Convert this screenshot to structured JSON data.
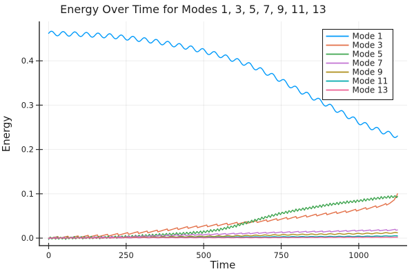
{
  "chart_data": {
    "type": "line",
    "title": "Energy Over Time for Modes 1, 3, 5, 7, 9, 11, 13",
    "xlabel": "Time",
    "ylabel": "Energy",
    "xlim": [
      -30,
      1156
    ],
    "ylim": [
      -0.017,
      0.489
    ],
    "xticks": [
      0,
      250,
      500,
      750,
      1000
    ],
    "yticks": [
      0.0,
      0.1,
      0.2,
      0.3,
      0.4
    ],
    "grid": true,
    "legend_position": "top-right",
    "background_color": "#ffffff",
    "spine_color": "#2f2f2f",
    "grid_color": "#000000",
    "series": [
      {
        "name": "Mode 1",
        "color": "#009AFA",
        "osc": {
          "amp": 0.005,
          "period": 37.5,
          "shape": "sin"
        },
        "points": [
          [
            0,
            0.462
          ],
          [
            50,
            0.461
          ],
          [
            100,
            0.46
          ],
          [
            150,
            0.458
          ],
          [
            200,
            0.456
          ],
          [
            250,
            0.452
          ],
          [
            300,
            0.448
          ],
          [
            350,
            0.443
          ],
          [
            400,
            0.437
          ],
          [
            450,
            0.43
          ],
          [
            500,
            0.422
          ],
          [
            550,
            0.413
          ],
          [
            600,
            0.402
          ],
          [
            650,
            0.39
          ],
          [
            700,
            0.374
          ],
          [
            750,
            0.356
          ],
          [
            800,
            0.336
          ],
          [
            850,
            0.318
          ],
          [
            900,
            0.3
          ],
          [
            950,
            0.281
          ],
          [
            1000,
            0.262
          ],
          [
            1050,
            0.247
          ],
          [
            1100,
            0.235
          ],
          [
            1127,
            0.23
          ]
        ]
      },
      {
        "name": "Mode 3",
        "color": "#E36F47",
        "osc": {
          "amp": 0.0022,
          "period": 32,
          "shape": "saw"
        },
        "points": [
          [
            0,
            0.001
          ],
          [
            50,
            0.002
          ],
          [
            100,
            0.003
          ],
          [
            150,
            0.005
          ],
          [
            200,
            0.007
          ],
          [
            250,
            0.01
          ],
          [
            300,
            0.013
          ],
          [
            350,
            0.016
          ],
          [
            400,
            0.02
          ],
          [
            450,
            0.024
          ],
          [
            500,
            0.027
          ],
          [
            550,
            0.03
          ],
          [
            600,
            0.033
          ],
          [
            650,
            0.036
          ],
          [
            700,
            0.039
          ],
          [
            750,
            0.043
          ],
          [
            800,
            0.047
          ],
          [
            850,
            0.051
          ],
          [
            900,
            0.055
          ],
          [
            950,
            0.059
          ],
          [
            1000,
            0.064
          ],
          [
            1050,
            0.07
          ],
          [
            1080,
            0.074
          ],
          [
            1100,
            0.079
          ],
          [
            1115,
            0.085
          ],
          [
            1127,
            0.105
          ]
        ]
      },
      {
        "name": "Mode 5",
        "color": "#3DA44E",
        "osc": {
          "amp": 0.003,
          "period": 11,
          "shape": "tri"
        },
        "points": [
          [
            0,
            0.0
          ],
          [
            50,
            0.0
          ],
          [
            100,
            0.001
          ],
          [
            150,
            0.001
          ],
          [
            200,
            0.002
          ],
          [
            250,
            0.003
          ],
          [
            300,
            0.005
          ],
          [
            350,
            0.007
          ],
          [
            400,
            0.009
          ],
          [
            450,
            0.011
          ],
          [
            500,
            0.014
          ],
          [
            550,
            0.019
          ],
          [
            600,
            0.027
          ],
          [
            650,
            0.037
          ],
          [
            700,
            0.047
          ],
          [
            750,
            0.056
          ],
          [
            800,
            0.063
          ],
          [
            850,
            0.069
          ],
          [
            900,
            0.075
          ],
          [
            950,
            0.08
          ],
          [
            1000,
            0.084
          ],
          [
            1050,
            0.089
          ],
          [
            1100,
            0.093
          ],
          [
            1127,
            0.094
          ]
        ]
      },
      {
        "name": "Mode 7",
        "color": "#C271D2",
        "osc": {
          "amp": 0.0012,
          "period": 26,
          "shape": "saw"
        },
        "points": [
          [
            0,
            0.0
          ],
          [
            100,
            0.001
          ],
          [
            200,
            0.002
          ],
          [
            300,
            0.004
          ],
          [
            400,
            0.006
          ],
          [
            500,
            0.008
          ],
          [
            600,
            0.01
          ],
          [
            700,
            0.012
          ],
          [
            800,
            0.014
          ],
          [
            900,
            0.015
          ],
          [
            1000,
            0.017
          ],
          [
            1100,
            0.018
          ],
          [
            1127,
            0.019
          ]
        ]
      },
      {
        "name": "Mode 9",
        "color": "#AC8E18",
        "osc": {
          "amp": 0.0008,
          "period": 30,
          "shape": "sin"
        },
        "points": [
          [
            0,
            0.0
          ],
          [
            200,
            0.001
          ],
          [
            400,
            0.003
          ],
          [
            600,
            0.005
          ],
          [
            800,
            0.008
          ],
          [
            1000,
            0.01
          ],
          [
            1127,
            0.012
          ]
        ]
      },
      {
        "name": "Mode 11",
        "color": "#00AAAE",
        "osc": {
          "amp": 0.0004,
          "period": 30,
          "shape": "sin"
        },
        "points": [
          [
            0,
            0.0
          ],
          [
            250,
            0.001
          ],
          [
            500,
            0.002
          ],
          [
            750,
            0.003
          ],
          [
            1000,
            0.004
          ],
          [
            1127,
            0.005
          ]
        ]
      },
      {
        "name": "Mode 13",
        "color": "#ED5D92",
        "osc": {
          "amp": 0.0002,
          "period": 30,
          "shape": "sin"
        },
        "points": [
          [
            0,
            0.0
          ],
          [
            300,
            0.001
          ],
          [
            700,
            0.001
          ],
          [
            1000,
            0.002
          ],
          [
            1127,
            0.002
          ]
        ]
      }
    ]
  }
}
